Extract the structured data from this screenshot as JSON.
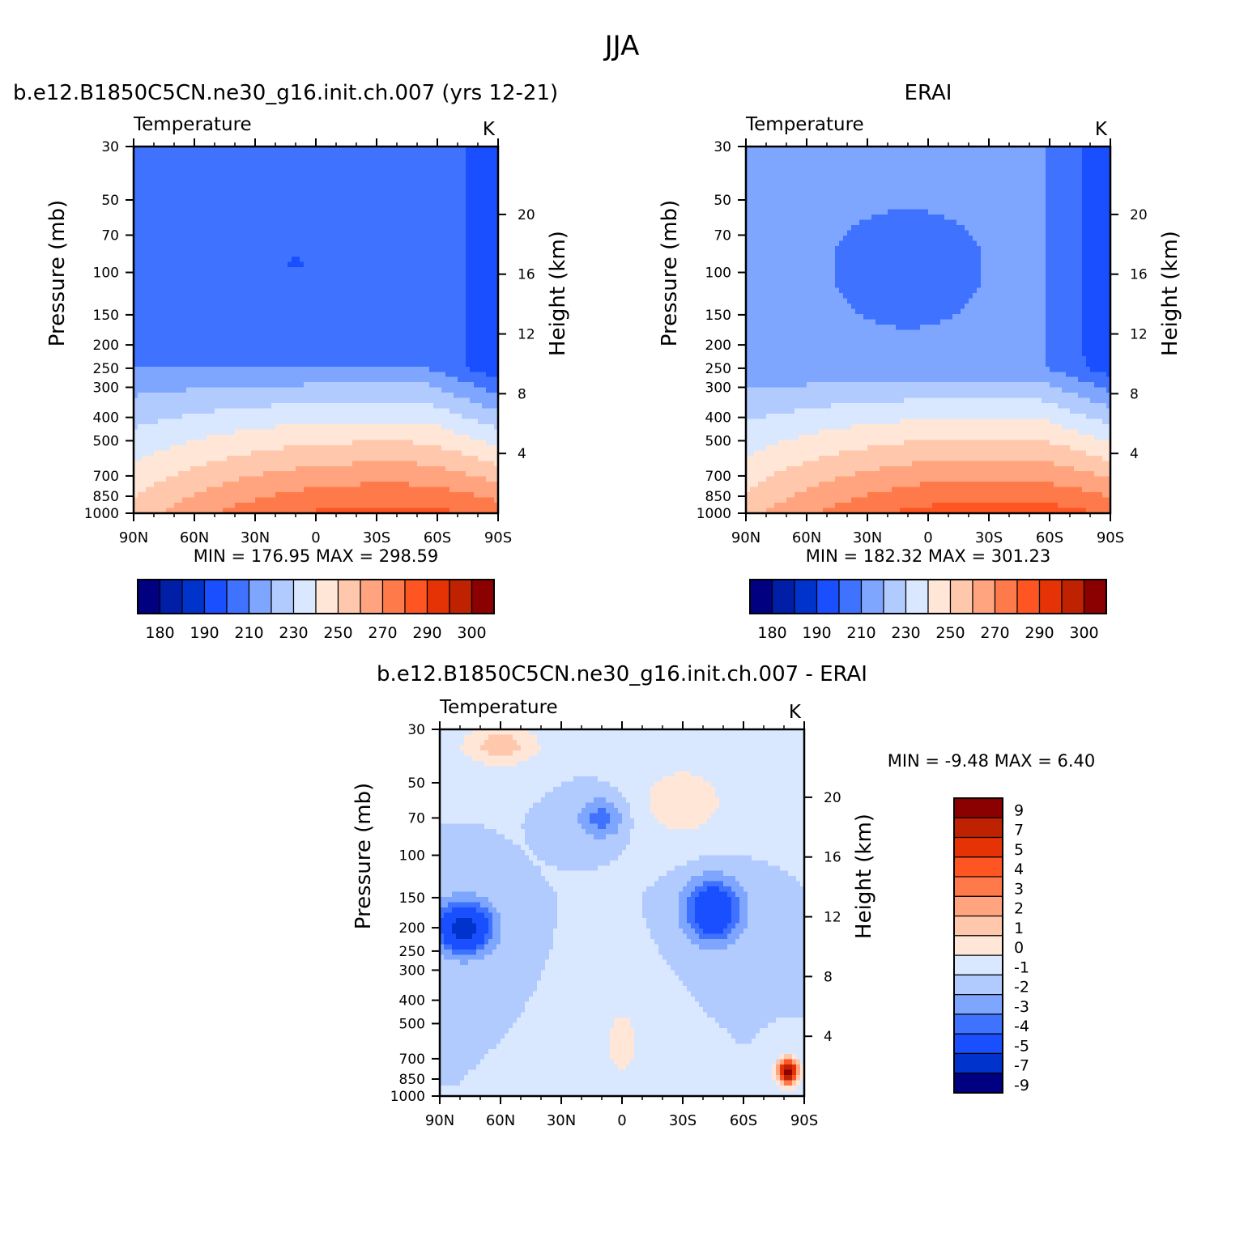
{
  "figure": {
    "season": "JJA",
    "variable": "Temperature",
    "units": "K"
  },
  "colors": {
    "abs_palette": [
      "#000080",
      "#001ea6",
      "#0033cc",
      "#1a4fff",
      "#3f72ff",
      "#7fa6ff",
      "#b2cbff",
      "#d9e8ff",
      "#ffe6d6",
      "#ffc8ac",
      "#ffa47f",
      "#ff7a4a",
      "#ff5522",
      "#e63305",
      "#bf2200",
      "#8b0000"
    ],
    "diff_palette": [
      "#000080",
      "#0033cc",
      "#1a4fff",
      "#3f72ff",
      "#7fa6ff",
      "#b2cbff",
      "#d9e8ff",
      "#ffe6d6",
      "#ffc8ac",
      "#ffa47f",
      "#ff7a4a",
      "#ff5522",
      "#e63305",
      "#bf2200",
      "#8b0000"
    ]
  },
  "chart_data": [
    {
      "type": "heatmap",
      "title": "b.e12.B1850C5CN.ne30_g16.init.ch.007 (yrs 12-21)",
      "subtitle": "Temperature",
      "units": "K",
      "ylabel": "Pressure (mb)",
      "y2label": "Height (km)",
      "x": [
        "90N",
        "60N",
        "30N",
        "0",
        "30S",
        "60S",
        "90S"
      ],
      "pressure_ticks": [
        "30",
        "50",
        "70",
        "100",
        "150",
        "200",
        "250",
        "300",
        "400",
        "500",
        "700",
        "850",
        "1000"
      ],
      "height_ticks": [
        "4",
        "8",
        "12",
        "16",
        "20"
      ],
      "stats": {
        "min_label": "MIN =",
        "min": "176.95",
        "max_label": "MAX =",
        "max": "298.59"
      },
      "colorbar_labels": [
        "180",
        "190",
        "210",
        "230",
        "250",
        "270",
        "290",
        "300"
      ],
      "levels": [
        180,
        185,
        190,
        200,
        210,
        220,
        230,
        240,
        250,
        260,
        270,
        280,
        290,
        295,
        300
      ],
      "grid": "off",
      "legend": "bottom"
    },
    {
      "type": "heatmap",
      "title": "ERAI",
      "subtitle": "Temperature",
      "units": "K",
      "ylabel": "Pressure (mb)",
      "y2label": "Height (km)",
      "x": [
        "90N",
        "60N",
        "30N",
        "0",
        "30S",
        "60S",
        "90S"
      ],
      "pressure_ticks": [
        "30",
        "50",
        "70",
        "100",
        "150",
        "200",
        "250",
        "300",
        "400",
        "500",
        "700",
        "850",
        "1000"
      ],
      "height_ticks": [
        "4",
        "8",
        "12",
        "16",
        "20"
      ],
      "stats": {
        "min_label": "MIN =",
        "min": "182.32",
        "max_label": "MAX =",
        "max": "301.23"
      },
      "colorbar_labels": [
        "180",
        "190",
        "210",
        "230",
        "250",
        "270",
        "290",
        "300"
      ],
      "levels": [
        180,
        185,
        190,
        200,
        210,
        220,
        230,
        240,
        250,
        260,
        270,
        280,
        290,
        295,
        300
      ],
      "grid": "off",
      "legend": "bottom"
    },
    {
      "type": "heatmap",
      "title": "b.e12.B1850C5CN.ne30_g16.init.ch.007 - ERAI",
      "subtitle": "Temperature",
      "units": "K",
      "ylabel": "Pressure (mb)",
      "y2label": "Height (km)",
      "x": [
        "90N",
        "60N",
        "30N",
        "0",
        "30S",
        "60S",
        "90S"
      ],
      "pressure_ticks": [
        "30",
        "50",
        "70",
        "100",
        "150",
        "200",
        "250",
        "300",
        "400",
        "500",
        "700",
        "850",
        "1000"
      ],
      "height_ticks": [
        "4",
        "8",
        "12",
        "16",
        "20"
      ],
      "stats": {
        "min_label": "MIN =",
        "min": "-9.48",
        "max_label": "MAX =",
        "max": "6.40"
      },
      "colorbar_labels": [
        "9",
        "7",
        "5",
        "4",
        "3",
        "2",
        "1",
        "0",
        "-1",
        "-2",
        "-3",
        "-4",
        "-5",
        "-7",
        "-9"
      ],
      "levels": [
        -9,
        -7,
        -5,
        -4,
        -3,
        -2,
        -1,
        0,
        1,
        2,
        3,
        4,
        5,
        7,
        9
      ],
      "grid": "off",
      "legend": "right"
    }
  ]
}
